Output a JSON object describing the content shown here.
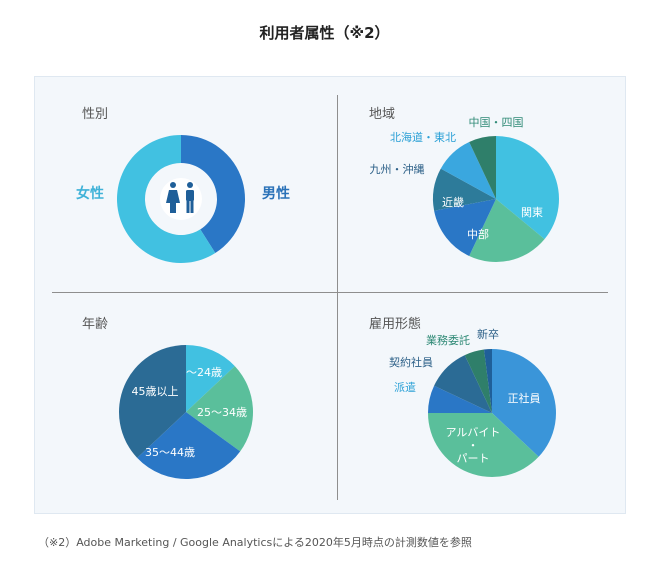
{
  "page": {
    "title": "利用者属性（※2）"
  },
  "quadrants": {
    "gender": {
      "title": "性別"
    },
    "region": {
      "title": "地域"
    },
    "age": {
      "title": "年齢"
    },
    "employment": {
      "title": "雇用形態"
    }
  },
  "footnote": "（※2）Adobe Marketing / Google Analyticsによる2020年5月時点の計測数値を参照",
  "colors": {
    "light_blue": "#41c1e1",
    "blue": "#2a77c6",
    "mid_blue": "#3a95d9",
    "teal": "#5abf9b",
    "dark_teal": "#2d7b9a",
    "green_dark": "#2f7f6a",
    "navy": "#2b6b95",
    "icon_blue": "#1f5f99",
    "label_gender_female": "#3fb2d8",
    "label_gender_male": "#2a72b8",
    "label_external_blue": "#2aa0d6",
    "label_external_teal": "#2f8a76",
    "label_external_navy": "#2b5f87"
  },
  "icons": {
    "gender_center": "female-male-icon"
  },
  "chart_data": [
    {
      "type": "pie",
      "title": "性別",
      "donut": true,
      "slices": [
        {
          "label": "男性",
          "value": 41,
          "color": "#2a77c6"
        },
        {
          "label": "女性",
          "value": 59,
          "color": "#41c1e1"
        }
      ]
    },
    {
      "type": "pie",
      "title": "地域",
      "slices": [
        {
          "label": "関東",
          "value": 36,
          "color": "#41c1e1"
        },
        {
          "label": "中部",
          "value": 21,
          "color": "#5abf9b"
        },
        {
          "label": "近畿",
          "value": 15,
          "color": "#2a77c6"
        },
        {
          "label": "九州・沖縄",
          "value": 11,
          "color": "#2d7b9a"
        },
        {
          "label": "北海道・東北",
          "value": 10,
          "color": "#3aa7df"
        },
        {
          "label": "中国・四国",
          "value": 7,
          "color": "#2f7f6a"
        }
      ]
    },
    {
      "type": "pie",
      "title": "年齢",
      "slices": [
        {
          "label": "〜24歳",
          "value": 13,
          "color": "#41c1e1"
        },
        {
          "label": "25〜34歳",
          "value": 22,
          "color": "#5abf9b"
        },
        {
          "label": "35〜44歳",
          "value": 28,
          "color": "#2a77c6"
        },
        {
          "label": "45歳以上",
          "value": 37,
          "color": "#2b6b95"
        }
      ]
    },
    {
      "type": "pie",
      "title": "雇用形態",
      "slices": [
        {
          "label": "正社員",
          "value": 37,
          "color": "#3a95d9"
        },
        {
          "label": "アルバイト・パート",
          "value": 38,
          "color": "#5abf9b"
        },
        {
          "label": "派遣",
          "value": 7,
          "color": "#2a77c6"
        },
        {
          "label": "契約社員",
          "value": 11,
          "color": "#2b6b95"
        },
        {
          "label": "業務委託",
          "value": 5,
          "color": "#2f7f6a"
        },
        {
          "label": "新卒",
          "value": 2,
          "color": "#1f5f99"
        }
      ]
    }
  ]
}
